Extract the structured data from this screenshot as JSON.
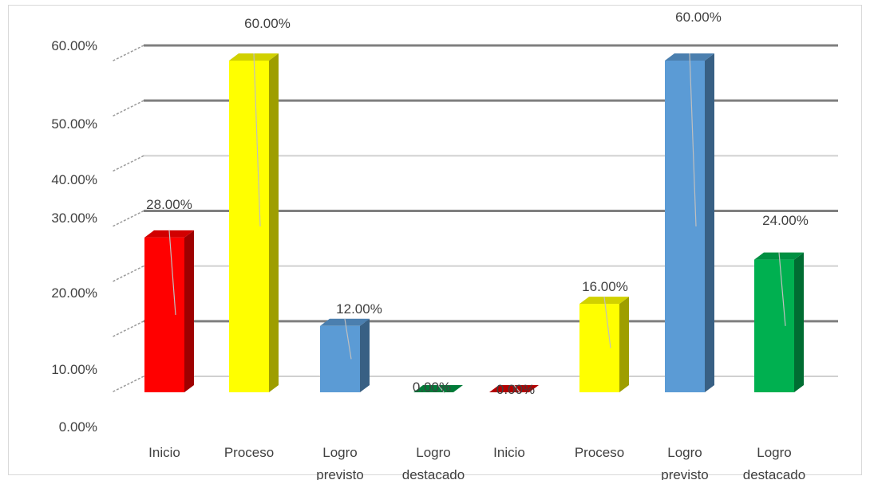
{
  "chart_data": {
    "type": "bar",
    "style": "3d-clustered-column",
    "title": "",
    "xlabel": "",
    "ylabel": "",
    "ylim": [
      0,
      0.6
    ],
    "ytick_labels": [
      "0.00%",
      "10.00%",
      "20.00%",
      "30.00%",
      "40.00%",
      "50.00%",
      "60.00%"
    ],
    "grid": true,
    "legend": "none",
    "categories": [
      [
        "Inicio"
      ],
      [
        "Proceso"
      ],
      [
        "Logro",
        "previsto"
      ],
      [
        "Logro",
        "destacado"
      ],
      [
        "Inicio"
      ],
      [
        "Proceso"
      ],
      [
        "Logro",
        "previsto"
      ],
      [
        "Logro",
        "destacado"
      ]
    ],
    "values": [
      0.28,
      0.6,
      0.12,
      0.0,
      0.0,
      0.16,
      0.6,
      0.24
    ],
    "data_labels": [
      "28.00%",
      "60.00%",
      "12.00%",
      "0.00%",
      "0.00%",
      "16.00%",
      "60.00%",
      "24.00%"
    ],
    "colors": [
      "#ff0000",
      "#ffff00",
      "#5b9bd5",
      "#00b050",
      "#ff0000",
      "#ffff00",
      "#5b9bd5",
      "#00b050"
    ]
  }
}
